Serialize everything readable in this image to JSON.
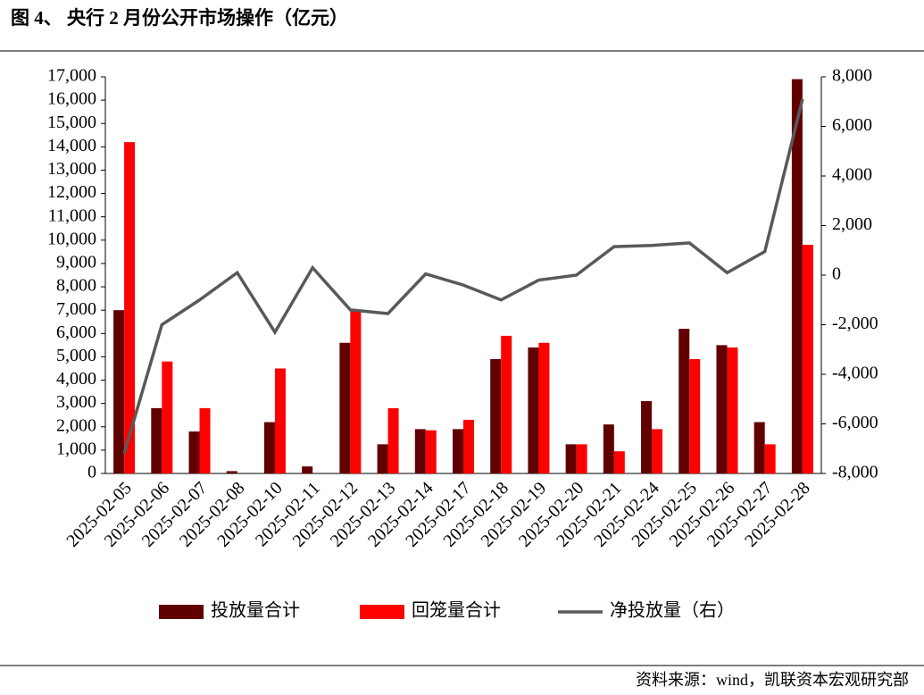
{
  "chart_data": {
    "type": "bar_line",
    "title": "图 4、 央行 2 月份公开市场操作（亿元）",
    "source": "资料来源：wind，凯联资本宏观研究部",
    "categories": [
      "2025-02-05",
      "2025-02-06",
      "2025-02-07",
      "2025-02-08",
      "2025-02-10",
      "2025-02-11",
      "2025-02-12",
      "2025-02-13",
      "2025-02-14",
      "2025-02-17",
      "2025-02-18",
      "2025-02-19",
      "2025-02-20",
      "2025-02-21",
      "2025-02-24",
      "2025-02-25",
      "2025-02-26",
      "2025-02-27",
      "2025-02-28"
    ],
    "series": [
      {
        "name": "投放量合计",
        "type": "bar",
        "color": "#600000",
        "values": [
          7000,
          2800,
          1800,
          100,
          2200,
          300,
          5600,
          1250,
          1900,
          1900,
          4900,
          5400,
          1250,
          2100,
          3100,
          6200,
          5500,
          2200,
          16900
        ]
      },
      {
        "name": "回笼量合计",
        "type": "bar",
        "color": "#ff0000",
        "values": [
          14200,
          4800,
          2800,
          0,
          4500,
          0,
          7000,
          2800,
          1850,
          2300,
          5900,
          5600,
          1250,
          950,
          1900,
          4900,
          5400,
          1250,
          9800
        ]
      },
      {
        "name": "净投放量（右）",
        "type": "line",
        "axis": "y2",
        "color": "#595959",
        "values": [
          -7200,
          -2000,
          -1000,
          100,
          -2300,
          300,
          -1400,
          -1550,
          50,
          -400,
          -1000,
          -200,
          0,
          1150,
          1200,
          1300,
          100,
          950,
          7100
        ]
      }
    ],
    "ylim": [
      0,
      17000
    ],
    "yticks": [
      0,
      {
        "value": 1000,
        "label": "1,000"
      },
      {
        "value": 2000,
        "label": "2,000"
      },
      {
        "value": 3000,
        "label": "3,000"
      },
      {
        "value": 4000,
        "label": "4,000"
      },
      {
        "value": 5000,
        "label": "5,000"
      },
      {
        "value": 6000,
        "label": "6,000"
      },
      {
        "value": 7000,
        "label": "7,000"
      },
      {
        "value": 8000,
        "label": "8,000"
      },
      {
        "value": 9000,
        "label": "9,000"
      },
      {
        "value": 10000,
        "label": "10,000"
      },
      {
        "value": 11000,
        "label": "11,000"
      },
      {
        "value": 12000,
        "label": "12,000"
      },
      {
        "value": 13000,
        "label": "13,000"
      },
      {
        "value": 14000,
        "label": "14,000"
      },
      {
        "value": 15000,
        "label": "15,000"
      },
      {
        "value": 16000,
        "label": "16,000"
      },
      {
        "value": 17000,
        "label": "17,000"
      }
    ],
    "y2lim": [
      -8000,
      8000
    ],
    "y2ticks": [
      {
        "value": -8000,
        "label": "-8,000"
      },
      {
        "value": -6000,
        "label": "-6,000"
      },
      {
        "value": -4000,
        "label": "-4,000"
      },
      {
        "value": -2000,
        "label": "-2,000"
      },
      0,
      {
        "value": 2000,
        "label": "2,000"
      },
      {
        "value": 4000,
        "label": "4,000"
      },
      {
        "value": 6000,
        "label": "6,000"
      },
      {
        "value": 8000,
        "label": "8,000"
      }
    ],
    "grid": false,
    "legend": "bottom"
  }
}
